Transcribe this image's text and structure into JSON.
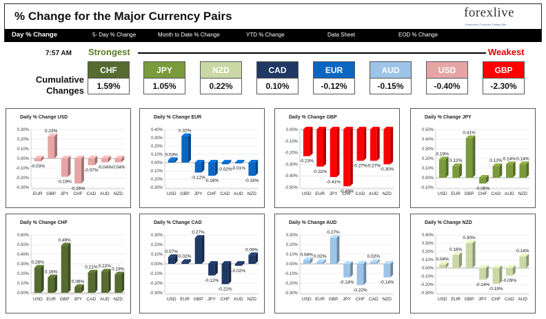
{
  "header": {
    "title": "% Change for the Major Currency Pairs",
    "logo": {
      "name": "forexlive",
      "tagline": "Everyone's Currency Trading Site"
    },
    "nav": [
      "Day % Change",
      "5- Day % Change",
      "Month to Date % Change",
      "YTD % Change",
      "Data Sheet",
      "EOD % Change"
    ]
  },
  "summary": {
    "time": "7:57 AM",
    "strongest_label": "Strongest",
    "weakest_label": "Weakest",
    "cumulative_label": "Cumulative Changes",
    "currencies": [
      {
        "code": "CHF",
        "value": "1.59%",
        "color": "#556b2f"
      },
      {
        "code": "JPY",
        "value": "1.05%",
        "color": "#7a9a3c"
      },
      {
        "code": "NZD",
        "value": "0.22%",
        "color": "#c9d8a5"
      },
      {
        "code": "CAD",
        "value": "0.10%",
        "color": "#1f3864"
      },
      {
        "code": "EUR",
        "value": "-0.12%",
        "color": "#0b66c2"
      },
      {
        "code": "AUD",
        "value": "-0.15%",
        "color": "#9dc3e6"
      },
      {
        "code": "USD",
        "value": "-0.40%",
        "color": "#e6a5a5"
      },
      {
        "code": "GBP",
        "value": "-2.30%",
        "color": "#ff0000"
      }
    ]
  },
  "chart_data": [
    {
      "type": "bar",
      "title": "Daily % Change USD",
      "categories": [
        "EUR",
        "GBP",
        "JPY",
        "CHF",
        "CAD",
        "AUD",
        "NZD"
      ],
      "values": [
        -0.03,
        0.23,
        -0.19,
        -0.26,
        -0.07,
        -0.04,
        -0.04
      ],
      "value_labels": [
        "-0.03%",
        "0.23%",
        "-0.19%",
        "-0.26%",
        "-0.07%",
        "-0.04%",
        "-0.04%"
      ],
      "yticks": [
        "0.30%",
        "0.20%",
        "0.10%",
        "0.00%",
        "-0.10%",
        "-0.20%",
        "-0.30%"
      ],
      "ylim": [
        -0.3,
        0.3
      ],
      "color": "#e6a5a5"
    },
    {
      "type": "bar",
      "title": "Daily % Change EUR",
      "categories": [
        "USD",
        "GBP",
        "JPY",
        "CHF",
        "CAD",
        "AUD",
        "NZD"
      ],
      "values": [
        0.03,
        0.32,
        -0.12,
        -0.16,
        -0.02,
        -0.01,
        -0.16
      ],
      "value_labels": [
        "0.03%",
        "0.32%",
        "-0.12%",
        "-0.16%",
        "-0.02%",
        "-0.01%",
        "-0.16%"
      ],
      "yticks": [
        "0.40%",
        "0.30%",
        "0.20%",
        "0.10%",
        "0.00%",
        "-0.10%",
        "-0.20%",
        "-0.30%"
      ],
      "ylim": [
        -0.3,
        0.4
      ],
      "color": "#0b66c2"
    },
    {
      "type": "bar",
      "title": "Daily % Change GBP",
      "categories": [
        "USD",
        "EUR",
        "JPY",
        "CHF",
        "CAD",
        "AUD",
        "NZD"
      ],
      "values": [
        -0.23,
        -0.32,
        -0.41,
        -0.49,
        -0.27,
        -0.27,
        -0.3
      ],
      "value_labels": [
        "-0.23%",
        "-0.32%",
        "-0.41%",
        "-0.49%",
        "-0.27%",
        "-0.27%",
        "-0.30%"
      ],
      "yticks": [
        "0.00%",
        "-0.10%",
        "-0.20%",
        "-0.30%",
        "-0.40%",
        "-0.50%"
      ],
      "ylim": [
        -0.5,
        0.0
      ],
      "color": "#ff0000"
    },
    {
      "type": "bar",
      "title": "Daily % Change JPY",
      "categories": [
        "USD",
        "EUR",
        "GBP",
        "CHF",
        "CAD",
        "AUD",
        "NZD"
      ],
      "values": [
        0.19,
        0.12,
        0.41,
        -0.06,
        0.12,
        0.14,
        0.14
      ],
      "value_labels": [
        "0.19%",
        "0.12%",
        "0.41%",
        "-0.06%",
        "0.12%",
        "0.14%",
        "0.14%"
      ],
      "yticks": [
        "0.50%",
        "0.40%",
        "0.30%",
        "0.20%",
        "0.10%",
        "0.00%",
        "-0.10%"
      ],
      "ylim": [
        -0.1,
        0.5
      ],
      "color": "#7a9a3c"
    },
    {
      "type": "bar",
      "title": "Daily % Change CHF",
      "categories": [
        "USD",
        "EUR",
        "GBP",
        "JPY",
        "CAD",
        "AUD",
        "NZD"
      ],
      "values": [
        0.26,
        0.16,
        0.49,
        0.06,
        0.21,
        0.22,
        0.19
      ],
      "value_labels": [
        "0.26%",
        "0.16%",
        "0.49%",
        "0.06%",
        "0.21%",
        "0.22%",
        "0.19%"
      ],
      "yticks": [
        "0.60%",
        "0.50%",
        "0.40%",
        "0.30%",
        "0.20%",
        "0.10%",
        "0.00%"
      ],
      "ylim": [
        0.0,
        0.6
      ],
      "color": "#556b2f"
    },
    {
      "type": "bar",
      "title": "Daily % Change CAD",
      "categories": [
        "USD",
        "EUR",
        "GBP",
        "JPY",
        "CHF",
        "AUD",
        "NZD"
      ],
      "values": [
        0.07,
        0.02,
        0.27,
        -0.12,
        -0.21,
        -0.02,
        0.09
      ],
      "value_labels": [
        "0.07%",
        "0.02%",
        "0.27%",
        "-0.12%",
        "-0.21%",
        "-0.02%",
        "0.09%"
      ],
      "yticks": [
        "0.30%",
        "0.20%",
        "0.10%",
        "0.00%",
        "-0.10%",
        "-0.20%",
        "-0.30%"
      ],
      "ylim": [
        -0.3,
        0.3
      ],
      "color": "#1f3864"
    },
    {
      "type": "bar",
      "title": "Daily % Change AUD",
      "categories": [
        "USD",
        "EUR",
        "GBP",
        "JPY",
        "CHF",
        "CAD",
        "NZD"
      ],
      "values": [
        0.04,
        0.02,
        0.27,
        -0.14,
        -0.22,
        0.02,
        -0.14
      ],
      "value_labels": [
        "0.04%",
        "0.02%",
        "0.27%",
        "-0.14%",
        "-0.22%",
        "0.02%",
        "-0.14%"
      ],
      "yticks": [
        "0.30%",
        "0.20%",
        "0.10%",
        "0.00%",
        "-0.10%",
        "-0.20%",
        "-0.30%"
      ],
      "ylim": [
        -0.3,
        0.3
      ],
      "color": "#9dc3e6"
    },
    {
      "type": "bar",
      "title": "Daily % Change NZD",
      "categories": [
        "USD",
        "EUR",
        "GBP",
        "JPY",
        "CHF",
        "CAD",
        "AUD"
      ],
      "values": [
        0.04,
        0.16,
        0.3,
        -0.14,
        -0.19,
        -0.09,
        0.14
      ],
      "value_labels": [
        "0.04%",
        "0.16%",
        "0.30%",
        "-0.14%",
        "-0.19%",
        "-0.09%",
        "0.14%"
      ],
      "yticks": [
        "0.40%",
        "0.30%",
        "0.20%",
        "0.10%",
        "0.00%",
        "-0.10%",
        "-0.20%",
        "-0.30%"
      ],
      "ylim": [
        -0.3,
        0.4
      ],
      "color": "#c9d8a5"
    }
  ]
}
